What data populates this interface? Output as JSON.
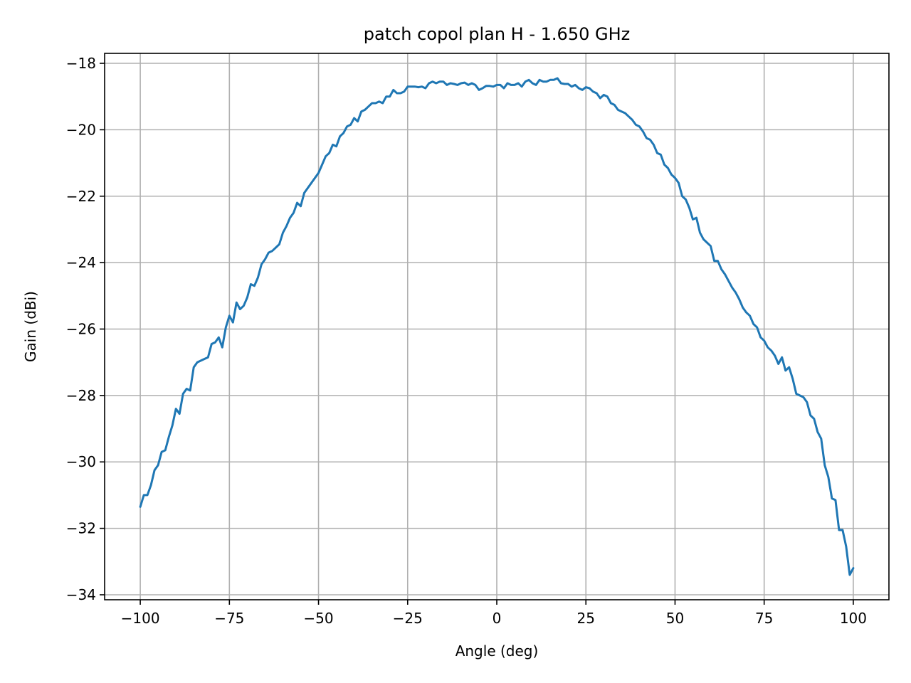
{
  "chart_data": {
    "type": "line",
    "title": "patch copol plan H - 1.650 GHz",
    "xlabel": "Angle (deg)",
    "ylabel": "Gain (dBi)",
    "xlim": [
      -110,
      110
    ],
    "ylim": [
      -34.15,
      -17.7
    ],
    "xticks": [
      -100,
      -75,
      -50,
      -25,
      0,
      25,
      50,
      75,
      100
    ],
    "yticks": [
      -34,
      -32,
      -30,
      -28,
      -26,
      -24,
      -22,
      -20,
      -18
    ],
    "xtick_labels": [
      "−100",
      "−75",
      "−50",
      "−25",
      "0",
      "25",
      "50",
      "75",
      "100"
    ],
    "ytick_labels": [
      "−34",
      "−32",
      "−30",
      "−28",
      "−26",
      "−24",
      "−22",
      "−20",
      "−18"
    ],
    "grid": true,
    "line_color": "#1f77b4",
    "series": [
      {
        "x": [
          -100,
          -99,
          -98,
          -97,
          -96,
          -95,
          -94,
          -93,
          -92,
          -91,
          -90,
          -89,
          -88,
          -87,
          -86,
          -85,
          -84,
          -83,
          -82,
          -81,
          -80,
          -79,
          -78,
          -77,
          -76,
          -75,
          -74,
          -73,
          -72,
          -71,
          -70,
          -69,
          -68,
          -67,
          -66,
          -65,
          -64,
          -63,
          -62,
          -61,
          -60,
          -59,
          -58,
          -57,
          -56,
          -55,
          -54,
          -53,
          -52,
          -51,
          -50,
          -49,
          -48,
          -47,
          -46,
          -45,
          -44,
          -43,
          -42,
          -41,
          -40,
          -39,
          -38,
          -37,
          -36,
          -35,
          -34,
          -33,
          -32,
          -31,
          -30,
          -29,
          -28,
          -27,
          -26,
          -25,
          -24,
          -23,
          -22,
          -21,
          -20,
          -19,
          -18,
          -17,
          -16,
          -15,
          -14,
          -13,
          -12,
          -11,
          -10,
          -9,
          -8,
          -7,
          -6,
          -5,
          -4,
          -3,
          -2,
          -1,
          0,
          1,
          2,
          3,
          4,
          5,
          6,
          7,
          8,
          9,
          10,
          11,
          12,
          13,
          14,
          15,
          16,
          17,
          18,
          19,
          20,
          21,
          22,
          23,
          24,
          25,
          26,
          27,
          28,
          29,
          30,
          31,
          32,
          33,
          34,
          35,
          36,
          37,
          38,
          39,
          40,
          41,
          42,
          43,
          44,
          45,
          46,
          47,
          48,
          49,
          50,
          51,
          52,
          53,
          54,
          55,
          56,
          57,
          58,
          59,
          60,
          61,
          62,
          63,
          64,
          65,
          66,
          67,
          68,
          69,
          70,
          71,
          72,
          73,
          74,
          75,
          76,
          77,
          78,
          79,
          80,
          81,
          82,
          83,
          84,
          85,
          86,
          87,
          88,
          89,
          90,
          91,
          92,
          93,
          94,
          95,
          96,
          97,
          98,
          99,
          100
        ],
        "values": [
          -31.35,
          -31.0,
          -31.0,
          -30.7,
          -30.25,
          -30.1,
          -29.7,
          -29.65,
          -29.25,
          -28.9,
          -28.4,
          -28.55,
          -27.95,
          -27.8,
          -27.85,
          -27.15,
          -27.0,
          -26.95,
          -26.9,
          -26.85,
          -26.45,
          -26.4,
          -26.25,
          -26.55,
          -25.95,
          -25.6,
          -25.8,
          -25.2,
          -25.4,
          -25.3,
          -25.05,
          -24.65,
          -24.7,
          -24.45,
          -24.05,
          -23.9,
          -23.7,
          -23.65,
          -23.55,
          -23.45,
          -23.1,
          -22.9,
          -22.65,
          -22.5,
          -22.2,
          -22.3,
          -21.9,
          -21.75,
          -21.6,
          -21.45,
          -21.3,
          -21.05,
          -20.8,
          -20.7,
          -20.45,
          -20.5,
          -20.2,
          -20.1,
          -19.9,
          -19.85,
          -19.65,
          -19.75,
          -19.45,
          -19.4,
          -19.3,
          -19.2,
          -19.2,
          -19.15,
          -19.2,
          -19.0,
          -19.0,
          -18.8,
          -18.9,
          -18.9,
          -18.85,
          -18.7,
          -18.7,
          -18.7,
          -18.72,
          -18.7,
          -18.75,
          -18.6,
          -18.55,
          -18.6,
          -18.55,
          -18.55,
          -18.65,
          -18.6,
          -18.62,
          -18.65,
          -18.6,
          -18.58,
          -18.65,
          -18.6,
          -18.65,
          -18.8,
          -18.75,
          -18.68,
          -18.68,
          -18.7,
          -18.65,
          -18.65,
          -18.75,
          -18.6,
          -18.65,
          -18.65,
          -18.6,
          -18.7,
          -18.55,
          -18.5,
          -18.6,
          -18.65,
          -18.5,
          -18.55,
          -18.55,
          -18.5,
          -18.5,
          -18.45,
          -18.6,
          -18.62,
          -18.62,
          -18.7,
          -18.65,
          -18.75,
          -18.8,
          -18.72,
          -18.75,
          -18.85,
          -18.9,
          -19.05,
          -18.95,
          -19.0,
          -19.2,
          -19.25,
          -19.4,
          -19.45,
          -19.5,
          -19.6,
          -19.7,
          -19.85,
          -19.9,
          -20.05,
          -20.25,
          -20.3,
          -20.45,
          -20.7,
          -20.75,
          -21.05,
          -21.15,
          -21.35,
          -21.45,
          -21.6,
          -22.0,
          -22.1,
          -22.35,
          -22.7,
          -22.65,
          -23.1,
          -23.3,
          -23.4,
          -23.5,
          -23.95,
          -23.95,
          -24.2,
          -24.35,
          -24.55,
          -24.75,
          -24.9,
          -25.1,
          -25.35,
          -25.5,
          -25.6,
          -25.85,
          -25.95,
          -26.25,
          -26.35,
          -26.55,
          -26.65,
          -26.8,
          -27.05,
          -26.85,
          -27.25,
          -27.15,
          -27.5,
          -27.95,
          -28.0,
          -28.05,
          -28.2,
          -28.6,
          -28.7,
          -29.1,
          -29.3,
          -30.1,
          -30.45,
          -31.1,
          -31.15,
          -32.05,
          -32.05,
          -32.55,
          -33.4,
          -33.2
        ]
      }
    ]
  }
}
